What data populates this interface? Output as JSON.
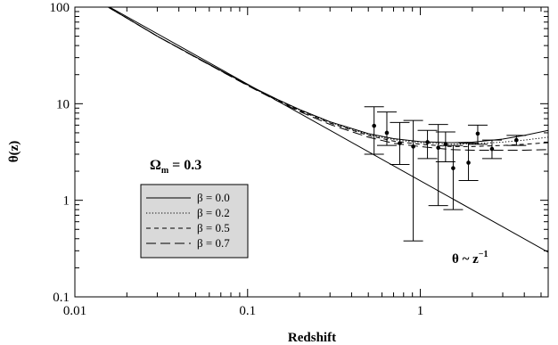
{
  "chart_data": {
    "type": "line",
    "xlabel": "Redshift",
    "ylabel": "θ(z)",
    "xscale": "log",
    "yscale": "log",
    "xlim": [
      0.01,
      5.5
    ],
    "ylim": [
      0.1,
      100
    ],
    "x_ticks": [
      {
        "value": 0.01,
        "label": "0.01"
      },
      {
        "value": 0.1,
        "label": "0.1"
      },
      {
        "value": 1,
        "label": "1"
      }
    ],
    "y_ticks": [
      {
        "value": 0.1,
        "label": "0.1"
      },
      {
        "value": 1,
        "label": "1"
      },
      {
        "value": 10,
        "label": "10"
      },
      {
        "value": 100,
        "label": "100"
      }
    ],
    "grid": false,
    "legend": {
      "position": "left-center",
      "title_prefix": "Ω",
      "title_subscript": "m",
      "title_value": " = 0.3",
      "entries": [
        "β = 0.0",
        "β = 0.2",
        "β = 0.5",
        "β = 0.7"
      ]
    },
    "series": [
      {
        "name": "β = 0.0",
        "dash": "solid",
        "points": [
          [
            0.01,
            159
          ],
          [
            0.015,
            104
          ],
          [
            0.02,
            77
          ],
          [
            0.03,
            50
          ],
          [
            0.05,
            30.5
          ],
          [
            0.07,
            22.1
          ],
          [
            0.1,
            15.7
          ],
          [
            0.15,
            11
          ],
          [
            0.2,
            8.7
          ],
          [
            0.3,
            6.5
          ],
          [
            0.5,
            4.9
          ],
          [
            0.7,
            4.35
          ],
          [
            1.0,
            4.05
          ],
          [
            1.5,
            3.95
          ],
          [
            2.0,
            4.0
          ],
          [
            3.0,
            4.3
          ],
          [
            4.0,
            4.7
          ],
          [
            5.5,
            5.3
          ]
        ]
      },
      {
        "name": "β = 0.2",
        "dash": "dotted",
        "points": [
          [
            0.01,
            159
          ],
          [
            0.015,
            104
          ],
          [
            0.02,
            77
          ],
          [
            0.03,
            50
          ],
          [
            0.05,
            30.4
          ],
          [
            0.07,
            22
          ],
          [
            0.1,
            15.6
          ],
          [
            0.15,
            10.9
          ],
          [
            0.2,
            8.6
          ],
          [
            0.3,
            6.4
          ],
          [
            0.5,
            4.8
          ],
          [
            0.7,
            4.25
          ],
          [
            1.0,
            3.95
          ],
          [
            1.5,
            3.8
          ],
          [
            2.0,
            3.85
          ],
          [
            3.0,
            4.0
          ],
          [
            4.0,
            4.2
          ],
          [
            5.5,
            4.5
          ]
        ]
      },
      {
        "name": "β = 0.5",
        "dash": "dashed",
        "points": [
          [
            0.01,
            159
          ],
          [
            0.015,
            104
          ],
          [
            0.02,
            77
          ],
          [
            0.03,
            50
          ],
          [
            0.05,
            30.3
          ],
          [
            0.07,
            21.9
          ],
          [
            0.1,
            15.5
          ],
          [
            0.15,
            10.8
          ],
          [
            0.2,
            8.5
          ],
          [
            0.3,
            6.3
          ],
          [
            0.5,
            4.7
          ],
          [
            0.7,
            4.1
          ],
          [
            1.0,
            3.8
          ],
          [
            1.5,
            3.6
          ],
          [
            2.0,
            3.6
          ],
          [
            3.0,
            3.7
          ],
          [
            4.0,
            3.8
          ],
          [
            5.5,
            3.95
          ]
        ]
      },
      {
        "name": "β = 0.7",
        "dash": "long-dashed",
        "points": [
          [
            0.01,
            159
          ],
          [
            0.015,
            104
          ],
          [
            0.02,
            77
          ],
          [
            0.03,
            50
          ],
          [
            0.05,
            30.2
          ],
          [
            0.07,
            21.8
          ],
          [
            0.1,
            15.4
          ],
          [
            0.15,
            10.6
          ],
          [
            0.2,
            8.3
          ],
          [
            0.3,
            6.1
          ],
          [
            0.5,
            4.5
          ],
          [
            0.7,
            3.9
          ],
          [
            1.0,
            3.6
          ],
          [
            1.5,
            3.35
          ],
          [
            2.0,
            3.3
          ],
          [
            3.0,
            3.3
          ],
          [
            4.0,
            3.3
          ],
          [
            5.5,
            3.35
          ]
        ]
      },
      {
        "name": "θ ~ z⁻¹",
        "dash": "solid",
        "points": [
          [
            0.01,
            159
          ],
          [
            5.5,
            0.29
          ]
        ]
      }
    ],
    "observations": [
      {
        "z": 0.54,
        "theta": 5.9,
        "err_low": 3.0,
        "err_high": 9.3
      },
      {
        "z": 0.64,
        "theta": 5.0,
        "err_low": 3.7,
        "err_high": 8.2
      },
      {
        "z": 0.76,
        "theta": 3.9,
        "err_low": 2.35,
        "err_high": 6.4
      },
      {
        "z": 0.91,
        "theta": 3.6,
        "err_low": 0.38,
        "err_high": 6.7
      },
      {
        "z": 1.1,
        "theta": 4.0,
        "err_low": 2.7,
        "err_high": 5.3
      },
      {
        "z": 1.27,
        "theta": 3.5,
        "err_low": 0.88,
        "err_high": 6.1
      },
      {
        "z": 1.4,
        "theta": 3.8,
        "err_low": 2.5,
        "err_high": 5.1
      },
      {
        "z": 1.55,
        "theta": 2.15,
        "err_low": 0.8,
        "err_high": 3.7
      },
      {
        "z": 1.9,
        "theta": 2.45,
        "err_low": 1.6,
        "err_high": 3.9
      },
      {
        "z": 2.15,
        "theta": 4.9,
        "err_low": 3.8,
        "err_high": 6.0
      },
      {
        "z": 2.6,
        "theta": 3.4,
        "err_low": 2.7,
        "err_high": 4.2
      },
      {
        "z": 3.6,
        "theta": 4.2,
        "err_low": 3.7,
        "err_high": 4.7
      }
    ],
    "annotation": {
      "text_base": "θ ~ z",
      "text_sup": "−1"
    }
  }
}
